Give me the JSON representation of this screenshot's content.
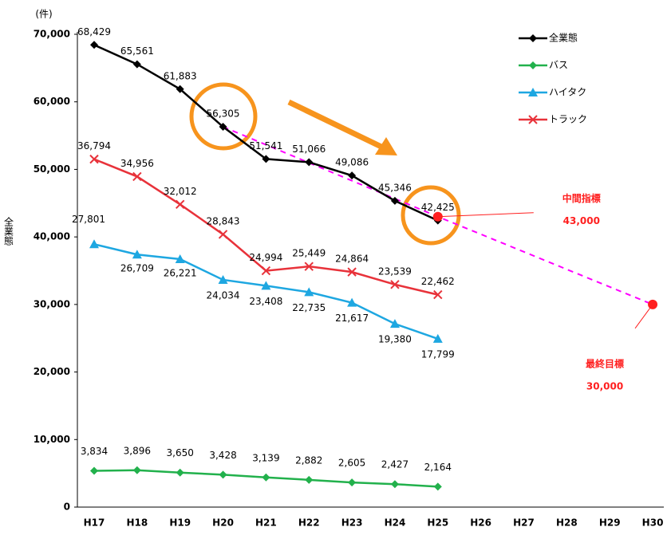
{
  "chart_data": {
    "type": "line",
    "y_unit": "(件)",
    "ylabel": "全業態",
    "categories": [
      "H17",
      "H18",
      "H19",
      "H20",
      "H21",
      "H22",
      "H23",
      "H24",
      "H25",
      "H26",
      "H27",
      "H28",
      "H29",
      "H30"
    ],
    "ylim": [
      0,
      70000
    ],
    "yticks": [
      0,
      {
        "value": 10000,
        "label": "10,000"
      },
      {
        "value": 20000,
        "label": "20,000"
      },
      {
        "value": 30000,
        "label": "30,000"
      },
      {
        "value": 40000,
        "label": "40,000"
      },
      {
        "value": 50000,
        "label": "50,000"
      },
      {
        "value": 60000,
        "label": "60,000"
      },
      {
        "value": 70000,
        "label": "70,000"
      }
    ],
    "y2lim": [
      0,
      50000
    ],
    "series": [
      {
        "name": "全業態",
        "color": "#000000",
        "marker": "diamond",
        "values": [
          68429,
          65561,
          61883,
          56305,
          51541,
          51066,
          49086,
          45346,
          42425,
          null,
          null,
          null,
          null,
          null
        ],
        "value_labels": [
          "68,429",
          "65,561",
          "61,883",
          "56,305",
          "51,541",
          "51,066",
          "49,086",
          "45,346",
          "42,425",
          null,
          null,
          null,
          null,
          null
        ]
      },
      {
        "name": "バス",
        "color": "#22b14c",
        "marker": "diamond",
        "axis": "y2",
        "values": [
          3834,
          3896,
          3650,
          3428,
          3139,
          2882,
          2605,
          2427,
          2164,
          null,
          null,
          null,
          null,
          null
        ],
        "value_labels": [
          "3,834",
          "3,896",
          "3,650",
          "3,428",
          "3,139",
          "2,882",
          "2,605",
          "2,427",
          "2,164",
          null,
          null,
          null,
          null,
          null
        ]
      },
      {
        "name": "ハイタク",
        "color": "#1ea7e1",
        "marker": "triangle",
        "axis": "y2",
        "values": [
          27801,
          26709,
          26221,
          24034,
          23408,
          22735,
          21617,
          19380,
          17799,
          null,
          null,
          null,
          null,
          null
        ],
        "value_labels": [
          "27,801",
          "26,709",
          "26,221",
          "24,034",
          "23,408",
          "22,735",
          "21,617",
          "19,380",
          "17,799",
          null,
          null,
          null,
          null,
          null
        ]
      },
      {
        "name": "トラック",
        "color": "#e8323a",
        "marker": "x",
        "axis": "y2",
        "values": [
          36794,
          34956,
          32012,
          28843,
          24994,
          25449,
          24864,
          23539,
          22462,
          null,
          null,
          null,
          null,
          null
        ],
        "value_labels": [
          "36,794",
          "34,956",
          "32,012",
          "28,843",
          "24,994",
          "25,449",
          "24,864",
          "23,539",
          "22,462",
          null,
          null,
          null,
          null,
          null
        ]
      }
    ],
    "target_from": "H20",
    "target_color": "#ff00ff",
    "milestones": [
      {
        "label": "中間指標",
        "category": "H25",
        "value": 43000,
        "value_label": "43,000"
      },
      {
        "label": "最終目標",
        "category": "H30",
        "value": 30000,
        "value_label": "30,000"
      }
    ],
    "milestone_color": "#ff2020"
  }
}
